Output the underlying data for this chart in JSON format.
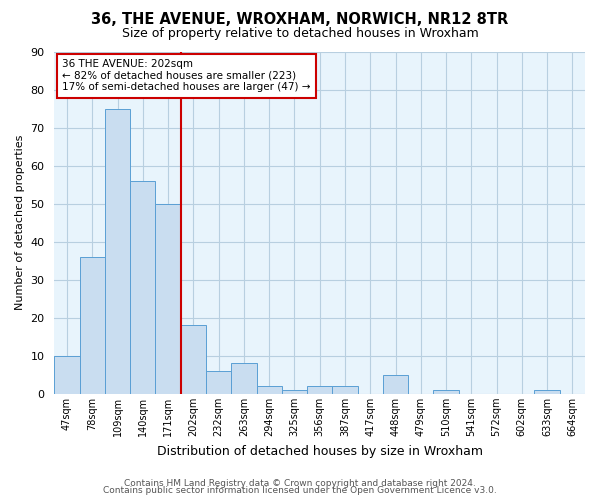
{
  "title": "36, THE AVENUE, WROXHAM, NORWICH, NR12 8TR",
  "subtitle": "Size of property relative to detached houses in Wroxham",
  "xlabel": "Distribution of detached houses by size in Wroxham",
  "ylabel": "Number of detached properties",
  "bin_labels": [
    "47sqm",
    "78sqm",
    "109sqm",
    "140sqm",
    "171sqm",
    "202sqm",
    "232sqm",
    "263sqm",
    "294sqm",
    "325sqm",
    "356sqm",
    "387sqm",
    "417sqm",
    "448sqm",
    "479sqm",
    "510sqm",
    "541sqm",
    "572sqm",
    "602sqm",
    "633sqm",
    "664sqm"
  ],
  "bar_values": [
    10,
    36,
    75,
    56,
    50,
    18,
    6,
    8,
    2,
    1,
    2,
    2,
    0,
    5,
    0,
    1,
    0,
    0,
    0,
    1,
    0
  ],
  "bar_color": "#c9ddf0",
  "bar_edge_color": "#5a9fd4",
  "vline_x": 5,
  "vline_color": "#cc0000",
  "annotation_line1": "36 THE AVENUE: 202sqm",
  "annotation_line2": "← 82% of detached houses are smaller (223)",
  "annotation_line3": "17% of semi-detached houses are larger (47) →",
  "box_edge_color": "#cc0000",
  "ylim": [
    0,
    90
  ],
  "yticks": [
    0,
    10,
    20,
    30,
    40,
    50,
    60,
    70,
    80,
    90
  ],
  "footer_line1": "Contains HM Land Registry data © Crown copyright and database right 2024.",
  "footer_line2": "Contains public sector information licensed under the Open Government Licence v3.0.",
  "background_color": "#ffffff",
  "plot_bg_color": "#e8f4fc",
  "grid_color": "#b8cfe0"
}
